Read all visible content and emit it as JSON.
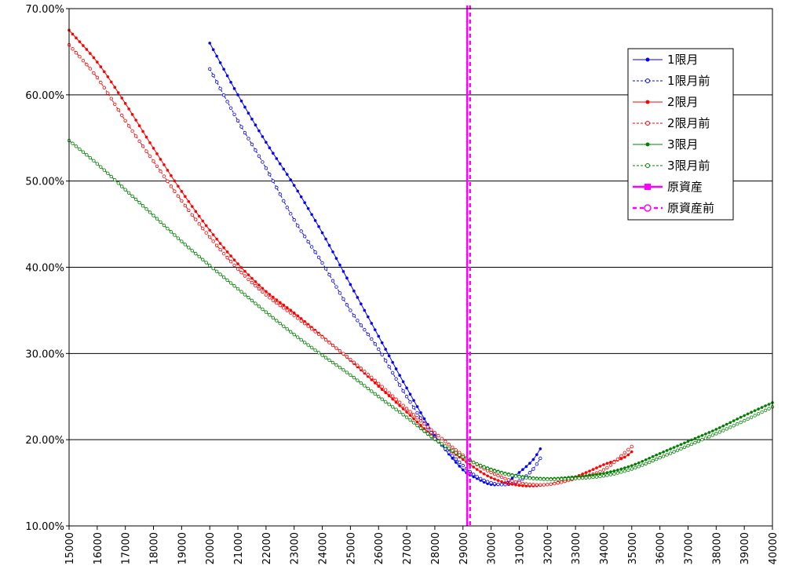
{
  "chart_data": {
    "type": "line",
    "xlim": [
      15000,
      40000
    ],
    "ylim": [
      0.1,
      0.7
    ],
    "x_ticks": [
      "15000",
      "16000",
      "17000",
      "18000",
      "19000",
      "20000",
      "21000",
      "22000",
      "23000",
      "24000",
      "25000",
      "26000",
      "27000",
      "28000",
      "29000",
      "30000",
      "31000",
      "32000",
      "33000",
      "34000",
      "35000",
      "36000",
      "37000",
      "38000",
      "39000",
      "40000"
    ],
    "y_ticks": [
      "10.00%",
      "20.00%",
      "30.00%",
      "40.00%",
      "50.00%",
      "60.00%",
      "70.00%"
    ],
    "y_tick_values": [
      0.1,
      0.2,
      0.3,
      0.4,
      0.5,
      0.6,
      0.7
    ],
    "grid": "horizontal",
    "legend_position": "top-right",
    "x_step": 125,
    "series": [
      {
        "name": "1限月",
        "color": "#0000ff",
        "style": "solid",
        "marker": "filled",
        "points": [
          [
            20000,
            0.66
          ],
          [
            21000,
            0.6
          ],
          [
            22000,
            0.545
          ],
          [
            23000,
            0.495
          ],
          [
            24000,
            0.44
          ],
          [
            25000,
            0.38
          ],
          [
            26000,
            0.32
          ],
          [
            27000,
            0.26
          ],
          [
            28000,
            0.205
          ],
          [
            29000,
            0.165
          ],
          [
            29500,
            0.155
          ],
          [
            30000,
            0.148
          ],
          [
            30500,
            0.15
          ],
          [
            31000,
            0.162
          ],
          [
            31500,
            0.177
          ],
          [
            31800,
            0.192
          ]
        ]
      },
      {
        "name": "1限月前",
        "color": "#0000ff",
        "style": "dashed",
        "marker": "hollow",
        "points": [
          [
            20000,
            0.63
          ],
          [
            21000,
            0.57
          ],
          [
            22000,
            0.515
          ],
          [
            23000,
            0.455
          ],
          [
            24000,
            0.405
          ],
          [
            25000,
            0.35
          ],
          [
            26000,
            0.305
          ],
          [
            27000,
            0.25
          ],
          [
            28000,
            0.203
          ],
          [
            29000,
            0.17
          ],
          [
            29500,
            0.157
          ],
          [
            30000,
            0.15
          ],
          [
            30500,
            0.148
          ],
          [
            31000,
            0.152
          ],
          [
            31500,
            0.166
          ],
          [
            31800,
            0.181
          ]
        ]
      },
      {
        "name": "2限月",
        "color": "#ff0000",
        "style": "solid",
        "marker": "filled",
        "points": [
          [
            15000,
            0.675
          ],
          [
            16000,
            0.638
          ],
          [
            17000,
            0.59
          ],
          [
            18000,
            0.538
          ],
          [
            19000,
            0.488
          ],
          [
            20000,
            0.443
          ],
          [
            21000,
            0.404
          ],
          [
            22000,
            0.372
          ],
          [
            23000,
            0.347
          ],
          [
            24000,
            0.32
          ],
          [
            25000,
            0.292
          ],
          [
            26000,
            0.262
          ],
          [
            27000,
            0.232
          ],
          [
            28000,
            0.202
          ],
          [
            29000,
            0.177
          ],
          [
            30000,
            0.156
          ],
          [
            31000,
            0.147
          ],
          [
            32000,
            0.148
          ],
          [
            33000,
            0.157
          ],
          [
            34000,
            0.171
          ],
          [
            35000,
            0.186
          ],
          [
            35000,
            0.203
          ]
        ]
      },
      {
        "name": "2限月前",
        "color": "#ff0000",
        "style": "dashed",
        "marker": "hollow",
        "points": [
          [
            15000,
            0.658
          ],
          [
            16000,
            0.62
          ],
          [
            17000,
            0.57
          ],
          [
            18000,
            0.523
          ],
          [
            19000,
            0.477
          ],
          [
            20000,
            0.435
          ],
          [
            21000,
            0.398
          ],
          [
            22000,
            0.368
          ],
          [
            23000,
            0.344
          ],
          [
            24000,
            0.319
          ],
          [
            25000,
            0.293
          ],
          [
            26000,
            0.265
          ],
          [
            27000,
            0.236
          ],
          [
            28000,
            0.208
          ],
          [
            29000,
            0.182
          ],
          [
            30000,
            0.162
          ],
          [
            31000,
            0.15
          ],
          [
            32000,
            0.148
          ],
          [
            33000,
            0.155
          ],
          [
            34000,
            0.165
          ],
          [
            35000,
            0.192
          ]
        ]
      },
      {
        "name": "3限月",
        "color": "#008000",
        "style": "solid",
        "marker": "filled",
        "points": [
          [
            15000,
            0.547
          ],
          [
            16000,
            0.52
          ],
          [
            17000,
            0.49
          ],
          [
            18000,
            0.46
          ],
          [
            19000,
            0.43
          ],
          [
            20000,
            0.402
          ],
          [
            21000,
            0.375
          ],
          [
            22000,
            0.348
          ],
          [
            23000,
            0.322
          ],
          [
            24000,
            0.298
          ],
          [
            25000,
            0.275
          ],
          [
            26000,
            0.25
          ],
          [
            27000,
            0.226
          ],
          [
            28000,
            0.2
          ],
          [
            29000,
            0.18
          ],
          [
            30000,
            0.166
          ],
          [
            31000,
            0.158
          ],
          [
            32000,
            0.155
          ],
          [
            33000,
            0.157
          ],
          [
            34000,
            0.161
          ],
          [
            35000,
            0.17
          ],
          [
            36000,
            0.184
          ],
          [
            37000,
            0.198
          ],
          [
            38000,
            0.212
          ],
          [
            39000,
            0.228
          ],
          [
            40000,
            0.243
          ]
        ]
      },
      {
        "name": "3限月前",
        "color": "#008000",
        "style": "dashed",
        "marker": "hollow",
        "points": [
          [
            15000,
            0.547
          ],
          [
            16000,
            0.52
          ],
          [
            17000,
            0.49
          ],
          [
            18000,
            0.46
          ],
          [
            19000,
            0.43
          ],
          [
            20000,
            0.402
          ],
          [
            21000,
            0.375
          ],
          [
            22000,
            0.348
          ],
          [
            23000,
            0.322
          ],
          [
            24000,
            0.298
          ],
          [
            25000,
            0.275
          ],
          [
            26000,
            0.25
          ],
          [
            27000,
            0.226
          ],
          [
            28000,
            0.201
          ],
          [
            29000,
            0.18
          ],
          [
            30000,
            0.165
          ],
          [
            31000,
            0.157
          ],
          [
            32000,
            0.154
          ],
          [
            33000,
            0.155
          ],
          [
            34000,
            0.158
          ],
          [
            35000,
            0.166
          ],
          [
            36000,
            0.179
          ],
          [
            37000,
            0.193
          ],
          [
            38000,
            0.207
          ],
          [
            39000,
            0.222
          ],
          [
            40000,
            0.238
          ]
        ]
      },
      {
        "name": "原資産",
        "color": "#ff00ff",
        "style": "solid",
        "marker": "filled-square",
        "vertical_x": 29150
      },
      {
        "name": "原資産前",
        "color": "#ff00ff",
        "style": "dashed",
        "marker": "hollow-circle",
        "vertical_x": 29250
      }
    ]
  }
}
